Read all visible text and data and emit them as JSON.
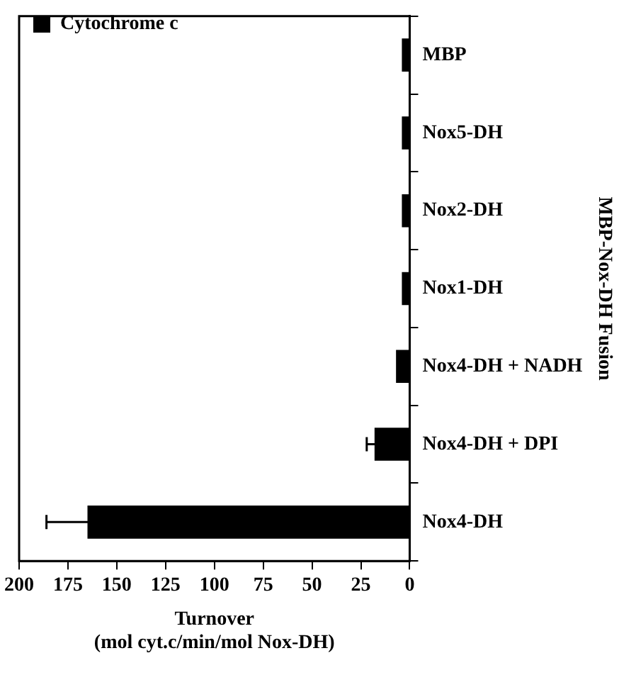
{
  "chart_data": {
    "type": "bar",
    "orientation": "horizontal",
    "categories": [
      "MBP",
      "Nox5-DH",
      "Nox2-DH",
      "Nox1-DH",
      "Nox4-DH + NADH",
      "Nox4-DH + DPI",
      "Nox4-DH"
    ],
    "series": [
      {
        "name": "Cytochrome c",
        "color": "#000000",
        "values": [
          4,
          4,
          4,
          4,
          7,
          18,
          165
        ],
        "errors": [
          null,
          null,
          null,
          null,
          null,
          4,
          21
        ]
      }
    ],
    "xlim": [
      200,
      0
    ],
    "xticks": [
      200,
      175,
      150,
      125,
      100,
      75,
      50,
      25,
      0
    ],
    "xlabel": "Turnover\n(mol cyt.c/min/mol Nox-DH)",
    "ylabel": "MBP-Nox-DH Fusion",
    "grid": false,
    "legend": "top left"
  }
}
